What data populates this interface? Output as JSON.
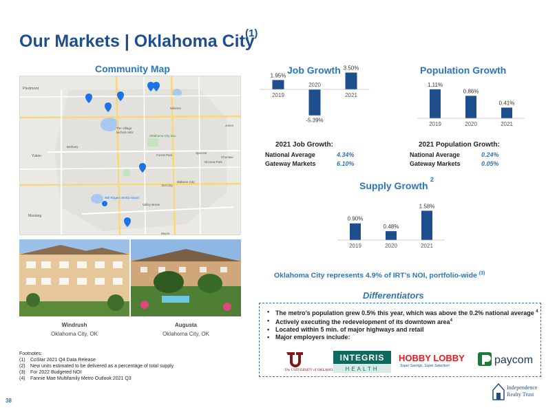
{
  "header": {
    "title": "Our Markets | Oklahoma City",
    "title_sup": "(1)"
  },
  "map_section": {
    "title": "Community Map",
    "labels": {
      "piedmont": "Piedmont",
      "yukon": "Yukon",
      "mustang": "Mustang",
      "bethany": "Bethany",
      "village": "The Village",
      "nichols": "Nichols Hills",
      "zoo": "Oklahoma City Zoo",
      "spencer": "Spencer",
      "forest": "Forest Park",
      "nicoma": "Nicoma Park",
      "choctaw": "Choctaw",
      "midwest": "Midwest City",
      "delcity": "Del City",
      "airport": "Will Rogers World Airport",
      "valley": "Valley Brook",
      "wilshire": "Wilshire",
      "jones": "Jones",
      "moore": "Moore"
    }
  },
  "properties": [
    {
      "name": "Windrush",
      "city": "Oklahoma City, OK"
    },
    {
      "name": "Augusta",
      "city": "Oklahoma City, OK"
    }
  ],
  "footnotes": {
    "heading": "Footnotes:",
    "items": [
      {
        "num": "(1)",
        "text": "CoStar 2021 Q4 Data Release"
      },
      {
        "num": "(2)",
        "text": "New units estimated to be delivered as a percentage of total supply"
      },
      {
        "num": "(3)",
        "text": "For 2022 Budgeted NOI"
      },
      {
        "num": "(4)",
        "text": "Fannie Mae Multifamily Metro Outlook 2021 Q3"
      }
    ]
  },
  "chart_data": [
    {
      "type": "bar",
      "title": "Job Growth",
      "categories": [
        "2019",
        "2020",
        "2021"
      ],
      "values": [
        1.95,
        -5.39,
        3.5
      ],
      "value_labels": [
        "1.95%",
        "-5.39%",
        "3.50%"
      ],
      "color": "#1f4e8c"
    },
    {
      "type": "bar",
      "title": "Population Growth",
      "categories": [
        "2019",
        "2020",
        "2021"
      ],
      "values": [
        1.11,
        0.86,
        0.41
      ],
      "value_labels": [
        "1.11%",
        "0.86%",
        "0.41%"
      ],
      "color": "#1f4e8c"
    },
    {
      "type": "bar",
      "title": "Supply Growth",
      "title_sup": "2",
      "categories": [
        "2019",
        "2020",
        "2021"
      ],
      "values": [
        0.9,
        0.48,
        1.58
      ],
      "value_labels": [
        "0.90%",
        "0.48%",
        "1.58%"
      ],
      "color": "#1f4e8c"
    }
  ],
  "job_stats": {
    "title": "2021 Job Growth:",
    "rows": [
      {
        "label": "National Average",
        "value": "4.34%"
      },
      {
        "label": "Gateway Markets",
        "value": "6.10%"
      }
    ]
  },
  "pop_stats": {
    "title": "2021 Population Growth:",
    "rows": [
      {
        "label": "National Average",
        "value": "0.24%"
      },
      {
        "label": "Gateway Markets",
        "value": "0.05%"
      }
    ]
  },
  "noi": {
    "text": "Oklahoma City represents 4.9% of IRT’s NOI, portfolio-wide",
    "sup": "(3)"
  },
  "differentiators": {
    "title": "Differentiators",
    "items": [
      {
        "text": "The metro’s population grew 0.5% this year, which was above the 0.2% national average",
        "sup": "4"
      },
      {
        "text": "Actively executing the redevelopment of its downtown area",
        "sup": "4"
      },
      {
        "text": "Located within 5 min. of major highways and retail",
        "sup": ""
      },
      {
        "text": "Major employers include:",
        "sup": ""
      }
    ]
  },
  "logos": {
    "ou": "The UNIVERSITY of OKLAHOMA",
    "integris_top": "INTEGRIS",
    "integris_bottom": "HEALTH",
    "hobby": "HOBBY LOBBY",
    "hobby_tag": "Super Savings, Super Selection!",
    "paycom": "paycom"
  },
  "footer": {
    "page": "38",
    "irt_line1": "Independence",
    "irt_line2": "Realty Trust"
  },
  "colors": {
    "brand": "#1f4e8c",
    "accent": "#2e75b6"
  }
}
